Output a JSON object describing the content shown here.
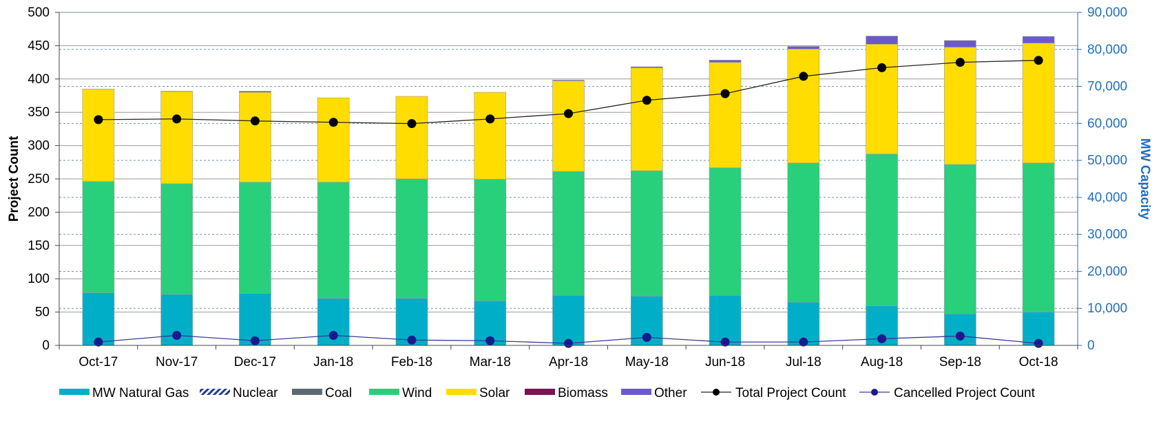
{
  "chart_data": {
    "type": "bar",
    "stacked": true,
    "categories": [
      "Oct-17",
      "Nov-17",
      "Dec-17",
      "Jan-18",
      "Feb-18",
      "Mar-18",
      "Apr-18",
      "May-18",
      "Jun-18",
      "Jul-18",
      "Aug-18",
      "Sep-18",
      "Oct-18"
    ],
    "y_left": {
      "label": "Project Count",
      "ylim": [
        0,
        500
      ],
      "ticks": [
        "0",
        "50",
        "100",
        "150",
        "200",
        "250",
        "300",
        "350",
        "400",
        "450",
        "500"
      ]
    },
    "y_right": {
      "label": "MW Capacity",
      "ylim": [
        0,
        90000
      ],
      "ticks": [
        "0",
        "10,000",
        "20,000",
        "30,000",
        "40,000",
        "50,000",
        "60,000",
        "70,000",
        "80,000",
        "90,000"
      ]
    },
    "grid": true,
    "legend_position": "bottom",
    "series": [
      {
        "name": "MW Natural Gas",
        "type": "bar",
        "axis": "right",
        "color": "#00aec7",
        "values": [
          14200,
          13800,
          14000,
          12700,
          12700,
          12000,
          13500,
          13300,
          13500,
          11700,
          10700,
          8500,
          9000
        ]
      },
      {
        "name": "Nuclear",
        "type": "bar",
        "axis": "right",
        "color": "#1f3a93",
        "pattern": "diagonal",
        "values": [
          0,
          0,
          0,
          0,
          0,
          0,
          0,
          0,
          0,
          0,
          0,
          0,
          0
        ]
      },
      {
        "name": "Coal",
        "type": "bar",
        "axis": "right",
        "color": "#5a6a72",
        "values": [
          0,
          0,
          0,
          0,
          0,
          0,
          0,
          0,
          0,
          0,
          0,
          0,
          0
        ]
      },
      {
        "name": "Wind",
        "type": "bar",
        "axis": "right",
        "color": "#28d07c",
        "values": [
          30100,
          29900,
          30100,
          31400,
          32300,
          32900,
          33500,
          33900,
          34500,
          37600,
          41000,
          40400,
          40300
        ]
      },
      {
        "name": "Solar",
        "type": "bar",
        "axis": "right",
        "color": "#ffdd00",
        "values": [
          25000,
          24900,
          24300,
          22800,
          22300,
          23500,
          24500,
          27800,
          28500,
          30800,
          29700,
          31700,
          32400
        ]
      },
      {
        "name": "Biomass",
        "type": "bar",
        "axis": "right",
        "color": "#7b1450",
        "values": [
          0,
          0,
          0,
          0,
          0,
          0,
          0,
          0,
          0,
          0,
          0,
          0,
          0
        ]
      },
      {
        "name": "Other",
        "type": "bar",
        "axis": "right",
        "color": "#6a5acd",
        "values": [
          0,
          100,
          300,
          0,
          0,
          0,
          200,
          300,
          600,
          700,
          2200,
          1800,
          1800
        ]
      },
      {
        "name": "Total Project Count",
        "type": "line",
        "axis": "left",
        "color": "#000000",
        "values": [
          339,
          340,
          337,
          335,
          333,
          340,
          348,
          368,
          378,
          404,
          417,
          425,
          428
        ]
      },
      {
        "name": "Cancelled Project Count",
        "type": "line",
        "axis": "left",
        "color": "#1a1a8c",
        "values": [
          5,
          15,
          7,
          15,
          8,
          7,
          3,
          12,
          5,
          5,
          10,
          14,
          3
        ]
      }
    ]
  }
}
